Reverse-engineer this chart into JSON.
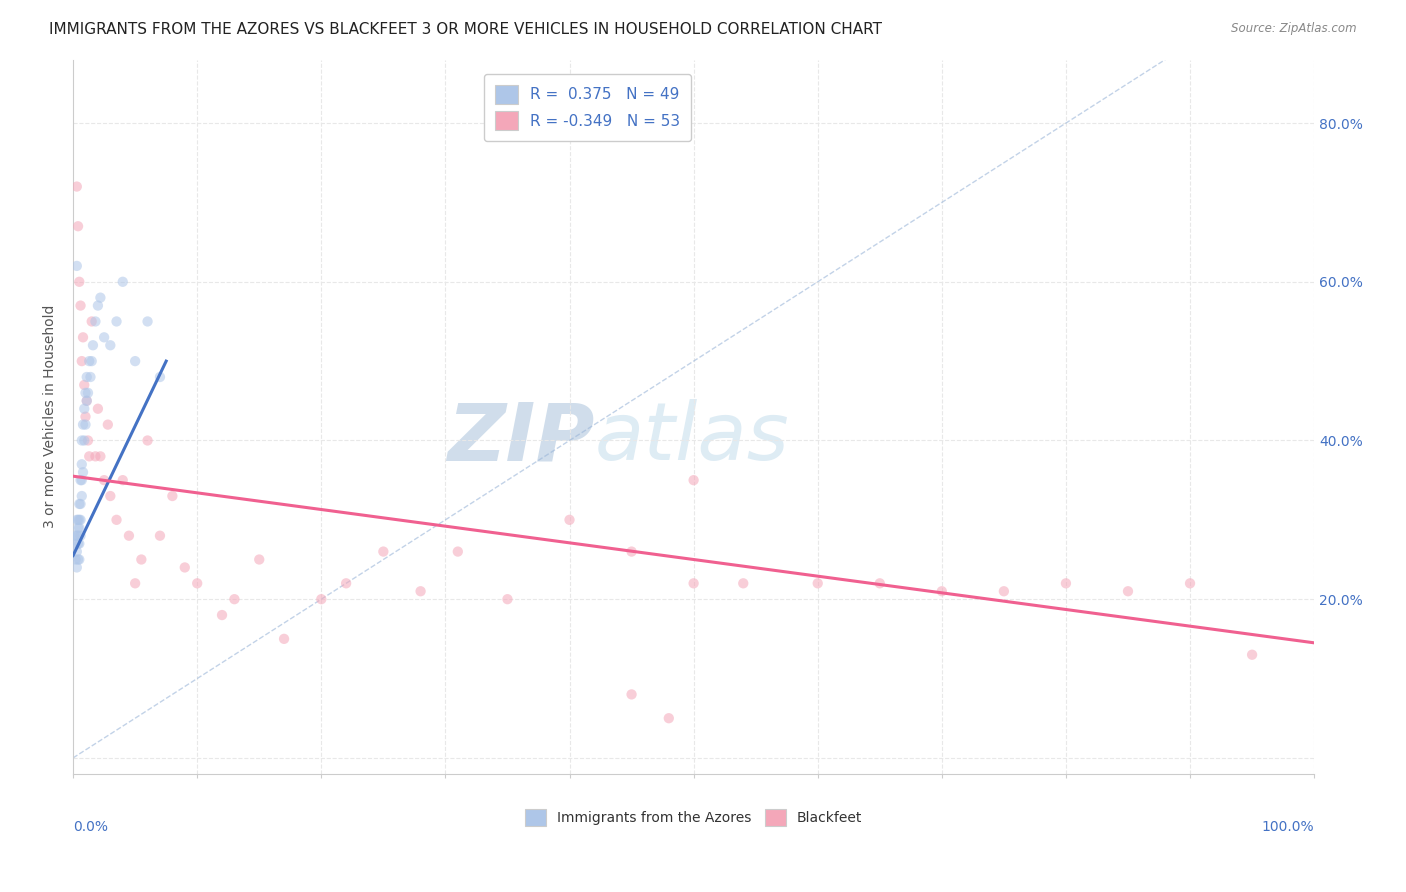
{
  "title": "IMMIGRANTS FROM THE AZORES VS BLACKFEET 3 OR MORE VEHICLES IN HOUSEHOLD CORRELATION CHART",
  "source": "Source: ZipAtlas.com",
  "ylabel": "3 or more Vehicles in Household",
  "ytick_values": [
    0.0,
    0.2,
    0.4,
    0.6,
    0.8
  ],
  "xlim": [
    0,
    1.0
  ],
  "ylim": [
    -0.02,
    0.88
  ],
  "legend_items": [
    {
      "label": "R =  0.375   N = 49",
      "color": "#aec6e8"
    },
    {
      "label": "R = -0.349   N = 53",
      "color": "#f4a7b9"
    }
  ],
  "legend_bottom": [
    "Immigrants from the Azores",
    "Blackfeet"
  ],
  "azores_color": "#aec6e8",
  "blackfeet_color": "#f4a7b9",
  "azores_line_color": "#4472c4",
  "blackfeet_line_color": "#f06090",
  "ref_line_color": "#9ab5d8",
  "blue_scatter_x": [
    0.001,
    0.002,
    0.002,
    0.003,
    0.003,
    0.003,
    0.003,
    0.004,
    0.004,
    0.004,
    0.004,
    0.004,
    0.005,
    0.005,
    0.005,
    0.005,
    0.005,
    0.006,
    0.006,
    0.006,
    0.006,
    0.007,
    0.007,
    0.007,
    0.007,
    0.008,
    0.008,
    0.009,
    0.009,
    0.01,
    0.01,
    0.011,
    0.011,
    0.012,
    0.013,
    0.014,
    0.015,
    0.016,
    0.018,
    0.02,
    0.022,
    0.025,
    0.03,
    0.035,
    0.04,
    0.05,
    0.06,
    0.07,
    0.003
  ],
  "blue_scatter_y": [
    0.28,
    0.25,
    0.27,
    0.26,
    0.28,
    0.3,
    0.24,
    0.27,
    0.29,
    0.25,
    0.28,
    0.3,
    0.27,
    0.29,
    0.3,
    0.32,
    0.25,
    0.3,
    0.32,
    0.35,
    0.28,
    0.33,
    0.35,
    0.37,
    0.4,
    0.36,
    0.42,
    0.4,
    0.44,
    0.42,
    0.46,
    0.45,
    0.48,
    0.46,
    0.5,
    0.48,
    0.5,
    0.52,
    0.55,
    0.57,
    0.58,
    0.53,
    0.52,
    0.55,
    0.6,
    0.5,
    0.55,
    0.48,
    0.62
  ],
  "pink_scatter_x": [
    0.003,
    0.004,
    0.005,
    0.006,
    0.007,
    0.008,
    0.009,
    0.01,
    0.011,
    0.012,
    0.013,
    0.015,
    0.018,
    0.02,
    0.022,
    0.025,
    0.028,
    0.03,
    0.035,
    0.04,
    0.045,
    0.05,
    0.055,
    0.06,
    0.07,
    0.08,
    0.09,
    0.1,
    0.12,
    0.13,
    0.15,
    0.17,
    0.2,
    0.22,
    0.25,
    0.28,
    0.31,
    0.35,
    0.4,
    0.45,
    0.5,
    0.5,
    0.54,
    0.6,
    0.65,
    0.7,
    0.75,
    0.8,
    0.85,
    0.9,
    0.95,
    0.45,
    0.48
  ],
  "pink_scatter_y": [
    0.72,
    0.67,
    0.6,
    0.57,
    0.5,
    0.53,
    0.47,
    0.43,
    0.45,
    0.4,
    0.38,
    0.55,
    0.38,
    0.44,
    0.38,
    0.35,
    0.42,
    0.33,
    0.3,
    0.35,
    0.28,
    0.22,
    0.25,
    0.4,
    0.28,
    0.33,
    0.24,
    0.22,
    0.18,
    0.2,
    0.25,
    0.15,
    0.2,
    0.22,
    0.26,
    0.21,
    0.26,
    0.2,
    0.3,
    0.26,
    0.35,
    0.22,
    0.22,
    0.22,
    0.22,
    0.21,
    0.21,
    0.22,
    0.21,
    0.22,
    0.13,
    0.08,
    0.05
  ],
  "azores_trendline_x": [
    0.0,
    0.075
  ],
  "azores_trendline_y": [
    0.255,
    0.5
  ],
  "blackfeet_trendline_x": [
    0.0,
    1.0
  ],
  "blackfeet_trendline_y": [
    0.355,
    0.145
  ],
  "ref_line_x": [
    0.0,
    0.88
  ],
  "ref_line_y": [
    0.0,
    0.88
  ],
  "grid_color": "#e8e8e8",
  "background_color": "#ffffff",
  "title_fontsize": 11,
  "axis_label_fontsize": 10,
  "tick_fontsize": 10,
  "marker_size": 55,
  "marker_alpha": 0.55
}
